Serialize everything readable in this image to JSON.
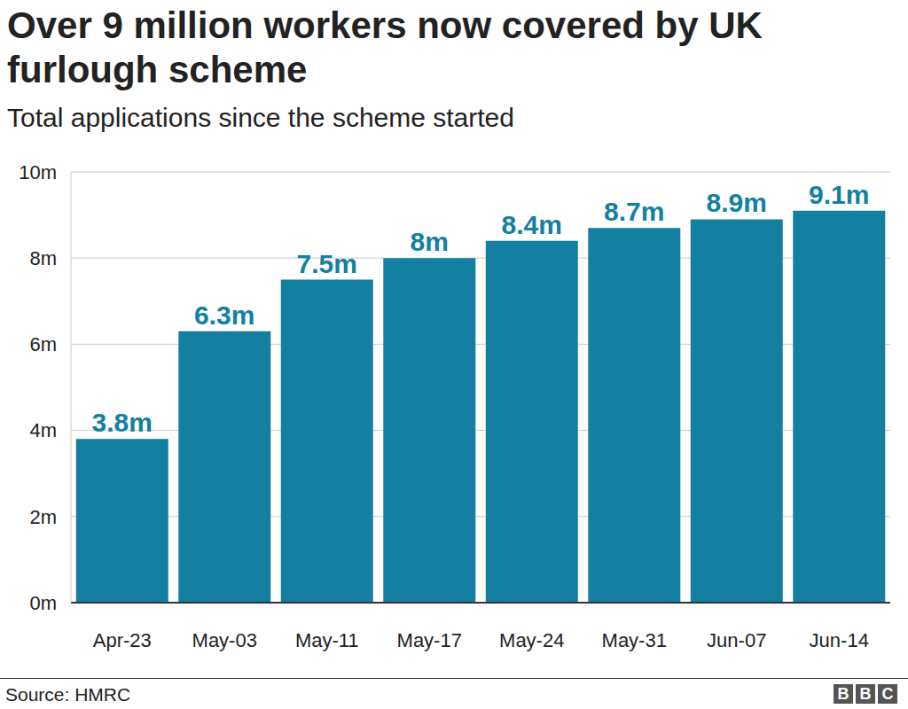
{
  "chart_data": {
    "type": "bar",
    "title": "Over 9 million workers now covered by UK furlough scheme",
    "subtitle": "Total applications since the scheme started",
    "categories": [
      "Apr-23",
      "May-03",
      "May-11",
      "May-17",
      "May-24",
      "May-31",
      "Jun-07",
      "Jun-14"
    ],
    "values": [
      3.8,
      6.3,
      7.5,
      8,
      8.4,
      8.7,
      8.9,
      9.1
    ],
    "value_labels": [
      "3.8m",
      "6.3m",
      "7.5m",
      "8m",
      "8.4m",
      "8.7m",
      "8.9m",
      "9.1m"
    ],
    "data_labels": true,
    "color": "#1380a1",
    "ylim": [
      0,
      10
    ],
    "yticks": [
      {
        "value": 0,
        "label": "0m"
      },
      {
        "value": 2,
        "label": "2m"
      },
      {
        "value": 4,
        "label": "4m"
      },
      {
        "value": 6,
        "label": "6m"
      },
      {
        "value": 8,
        "label": "8m"
      },
      {
        "value": 10,
        "label": "10m"
      }
    ],
    "grid": true,
    "source": "Source: HMRC",
    "logo": "BBC"
  }
}
